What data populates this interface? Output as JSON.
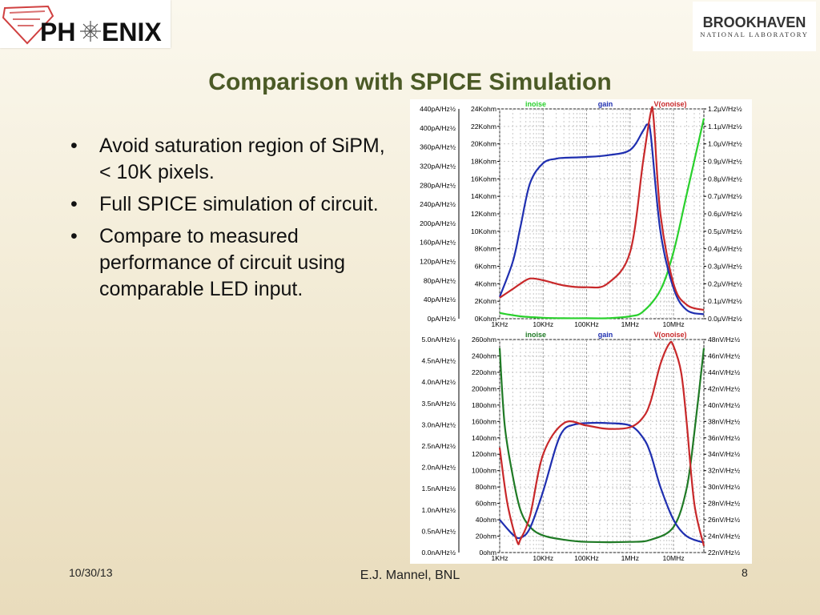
{
  "header": {
    "left_logo": {
      "text": "PH",
      "text2": "ENIX",
      "emblem_label": "PHENIX"
    },
    "right_logo": {
      "line1": "BROOKHAVEN",
      "line2": "NATIONAL LABORATORY"
    }
  },
  "title": "Comparison with SPICE Simulation",
  "bullets": [
    "Avoid saturation region of SiPM,  < 10K pixels.",
    "Full SPICE simulation of circuit.",
    "Compare to measured performance of circuit using comparable LED input."
  ],
  "footer": {
    "date": "10/30/13",
    "author": "E.J. Mannel, BNL",
    "page": "8"
  },
  "colors": {
    "inoise": "#29d02c",
    "gain": "#1f2fb0",
    "vonoise": "#c8282a",
    "title": "#4b5a26"
  },
  "chart_data": [
    {
      "type": "line",
      "legend": [
        "inoise",
        "gain",
        "V(onoise)"
      ],
      "x_ticks": [
        "1KHz",
        "10KHz",
        "100KHz",
        "1MHz",
        "10MHz"
      ],
      "x_scale": "log",
      "xlim": [
        1000,
        50000000
      ],
      "axis_left_outer": [
        "440pA/Hz½",
        "400pA/Hz½",
        "360pA/Hz½",
        "320pA/Hz½",
        "280pA/Hz½",
        "240pA/Hz½",
        "200pA/Hz½",
        "160pA/Hz½",
        "120pA/Hz½",
        "80pA/Hz½",
        "40pA/Hz½",
        "0pA/Hz½"
      ],
      "axis_left_inner": [
        "24Kohm",
        "22Kohm",
        "20Kohm",
        "18Kohm",
        "16Kohm",
        "14Kohm",
        "12Kohm",
        "10Kohm",
        "8Kohm",
        "6Kohm",
        "4Kohm",
        "2Kohm",
        "0Kohm"
      ],
      "axis_right": [
        "1.2µV/Hz½",
        "1.1µV/Hz½",
        "1.0µV/Hz½",
        "0.9µV/Hz½",
        "0.8µV/Hz½",
        "0.7µV/Hz½",
        "0.6µV/Hz½",
        "0.5µV/Hz½",
        "0.4µV/Hz½",
        "0.3µV/Hz½",
        "0.2µV/Hz½",
        "0.1µV/Hz½",
        "0.0µV/Hz½"
      ],
      "series": [
        {
          "name": "inoise",
          "color": "#29d02c",
          "unit": "pA/Hz½",
          "ylim": [
            0,
            440
          ],
          "x": [
            1000,
            3000,
            10000,
            30000,
            100000,
            300000,
            1000000,
            2000000,
            5000000,
            10000000,
            20000000,
            50000000
          ],
          "y": [
            12,
            5,
            2,
            1,
            1,
            1,
            5,
            15,
            60,
            140,
            260,
            420
          ]
        },
        {
          "name": "gain",
          "color": "#1f2fb0",
          "unit": "Kohm",
          "ylim": [
            0,
            24
          ],
          "x": [
            1000,
            2000,
            3000,
            5000,
            10000,
            20000,
            30000,
            100000,
            300000,
            1000000,
            2000000,
            2500000,
            3000000,
            5000000,
            10000000,
            20000000,
            50000000
          ],
          "y": [
            2.5,
            6.5,
            10.5,
            15.5,
            17.8,
            18.3,
            18.4,
            18.5,
            18.7,
            19.3,
            21.5,
            22.2,
            21.0,
            10.0,
            3.5,
            1.0,
            0.5
          ]
        },
        {
          "name": "V(onoise)",
          "color": "#c8282a",
          "unit": "µV/Hz½",
          "ylim": [
            0,
            1.2
          ],
          "x": [
            1000,
            2000,
            3000,
            5000,
            10000,
            30000,
            100000,
            300000,
            1000000,
            2000000,
            3000000,
            3500000,
            5000000,
            10000000,
            20000000,
            50000000
          ],
          "y": [
            0.12,
            0.17,
            0.2,
            0.23,
            0.22,
            0.19,
            0.18,
            0.2,
            0.38,
            0.9,
            1.18,
            1.14,
            0.6,
            0.2,
            0.08,
            0.05
          ]
        }
      ]
    },
    {
      "type": "line",
      "legend": [
        "inoise",
        "gain",
        "V(onoise)"
      ],
      "x_ticks": [
        "1KHz",
        "10KHz",
        "100KHz",
        "1MHz",
        "10MHz"
      ],
      "x_scale": "log",
      "xlim": [
        1000,
        50000000
      ],
      "axis_left_outer": [
        "5.0nA/Hz½",
        "4.5nA/Hz½",
        "4.0nA/Hz½",
        "3.5nA/Hz½",
        "3.0nA/Hz½",
        "2.5nA/Hz½",
        "2.0nA/Hz½",
        "1.5nA/Hz½",
        "1.0nA/Hz½",
        "0.5nA/Hz½",
        "0.0nA/Hz½"
      ],
      "axis_left_inner": [
        "260ohm",
        "240ohm",
        "220ohm",
        "200ohm",
        "180ohm",
        "160ohm",
        "140ohm",
        "120ohm",
        "100ohm",
        "80ohm",
        "60ohm",
        "40ohm",
        "20ohm",
        "0ohm"
      ],
      "axis_right": [
        "48nV/Hz½",
        "46nV/Hz½",
        "44nV/Hz½",
        "42nV/Hz½",
        "40nV/Hz½",
        "38nV/Hz½",
        "36nV/Hz½",
        "34nV/Hz½",
        "32nV/Hz½",
        "30nV/Hz½",
        "28nV/Hz½",
        "26nV/Hz½",
        "24nV/Hz½",
        "22nV/Hz½"
      ],
      "series": [
        {
          "name": "inoise",
          "color": "#1f7a25",
          "unit": "nA/Hz½",
          "ylim": [
            0,
            5
          ],
          "x": [
            1000,
            1300,
            2000,
            3000,
            5000,
            10000,
            30000,
            100000,
            1000000,
            3000000,
            10000000,
            20000000,
            30000000,
            50000000
          ],
          "y": [
            4.8,
            3.0,
            1.8,
            1.0,
            0.6,
            0.4,
            0.3,
            0.25,
            0.25,
            0.3,
            0.6,
            1.5,
            2.8,
            4.8
          ]
        },
        {
          "name": "gain",
          "color": "#1f2fb0",
          "unit": "ohm",
          "ylim": [
            0,
            260
          ],
          "x": [
            1000,
            2000,
            3000,
            5000,
            10000,
            20000,
            30000,
            50000,
            100000,
            300000,
            1000000,
            2000000,
            3000000,
            5000000,
            10000000,
            20000000,
            50000000
          ],
          "y": [
            40,
            22,
            18,
            30,
            75,
            130,
            150,
            156,
            158,
            158,
            155,
            140,
            120,
            80,
            40,
            20,
            12
          ]
        },
        {
          "name": "V(onoise)",
          "color": "#c8282a",
          "unit": "nV/Hz½",
          "ylim": [
            22,
            48
          ],
          "x": [
            1000,
            1500,
            2500,
            3000,
            5000,
            10000,
            30000,
            100000,
            300000,
            1000000,
            2000000,
            3000000,
            5000000,
            8000000,
            10000000,
            15000000,
            20000000,
            30000000,
            50000000
          ],
          "y": [
            34.8,
            28.0,
            23.4,
            23.6,
            26.5,
            34.0,
            37.8,
            37.5,
            37.1,
            37.3,
            38.5,
            40.5,
            45.0,
            47.5,
            47.2,
            44.0,
            38.0,
            28.0,
            22.8
          ]
        }
      ]
    }
  ]
}
